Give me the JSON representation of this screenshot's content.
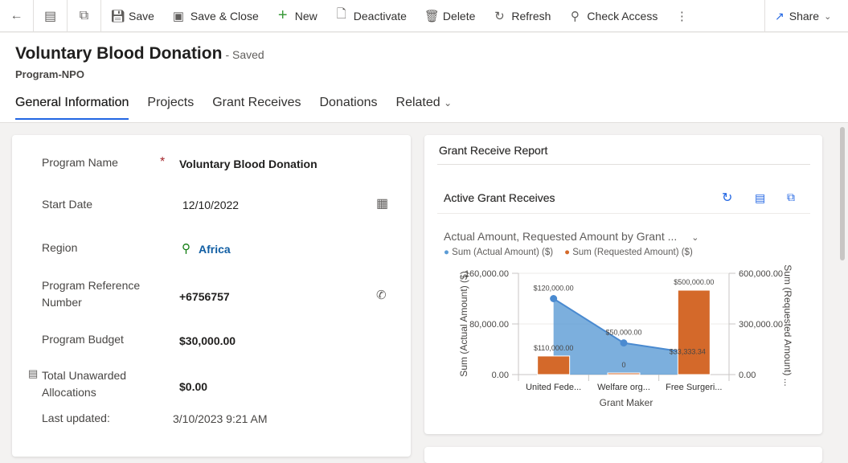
{
  "toolbar": {
    "save": "Save",
    "save_close": "Save & Close",
    "new": "New",
    "deactivate": "Deactivate",
    "delete": "Delete",
    "refresh": "Refresh",
    "check_access": "Check Access",
    "share": "Share"
  },
  "header": {
    "title": "Voluntary Blood Donation",
    "status": "- Saved",
    "entity": "Program-NPO"
  },
  "tabs": [
    "General Information",
    "Projects",
    "Grant Receives",
    "Donations",
    "Related"
  ],
  "form": {
    "program_name": {
      "label": "Program Name",
      "value": "Voluntary Blood Donation",
      "required": true
    },
    "start_date": {
      "label": "Start Date",
      "value": "12/10/2022"
    },
    "region": {
      "label": "Region",
      "value": "Africa"
    },
    "reference": {
      "label": "Program Reference Number",
      "value": "+6756757"
    },
    "budget": {
      "label": "Program Budget",
      "value": "$30,000.00"
    },
    "unawarded": {
      "label": "Total Unawarded Allocations",
      "value": "$0.00"
    },
    "last_updated": {
      "label": "Last updated:",
      "value": "3/10/2023 9:21 AM"
    }
  },
  "report": {
    "title": "Grant Receive Report",
    "subgrid_title": "Active Grant Receives",
    "chart_selector": "Actual Amount, Requested Amount by Grant ..."
  },
  "colors": {
    "accent": "#2266e3",
    "actual": "#5b9bd5",
    "requested": "#d4692a"
  },
  "chart_data": {
    "type": "bar+area",
    "categories": [
      "United Fede...",
      "Welfare org...",
      "Free Surgeri..."
    ],
    "xlabel": "Grant Maker",
    "ylabel": "Sum (Actual Amount) ($)",
    "y2label": "Sum (Requested Amount) ...",
    "ylim": [
      0,
      160000
    ],
    "y2lim": [
      0,
      600000
    ],
    "yticks": [
      "0.00",
      "80,000.00",
      "160,000.00"
    ],
    "y2ticks": [
      "0.00",
      "300,000.00",
      "600,000.00"
    ],
    "legend": "top-left",
    "series": [
      {
        "name": "Sum (Actual Amount) ($)",
        "type": "area",
        "axis": "left",
        "values": [
          120000,
          50000,
          33333.34
        ],
        "labels": [
          "$120,000.00",
          "$50,000.00",
          "$33,333.34"
        ]
      },
      {
        "name": "Sum (Requested Amount) ($)",
        "type": "bar",
        "axis": "right",
        "values": [
          110000,
          0,
          500000
        ],
        "labels": [
          "$110,000.00",
          "0",
          "$500,000.00"
        ]
      }
    ]
  }
}
